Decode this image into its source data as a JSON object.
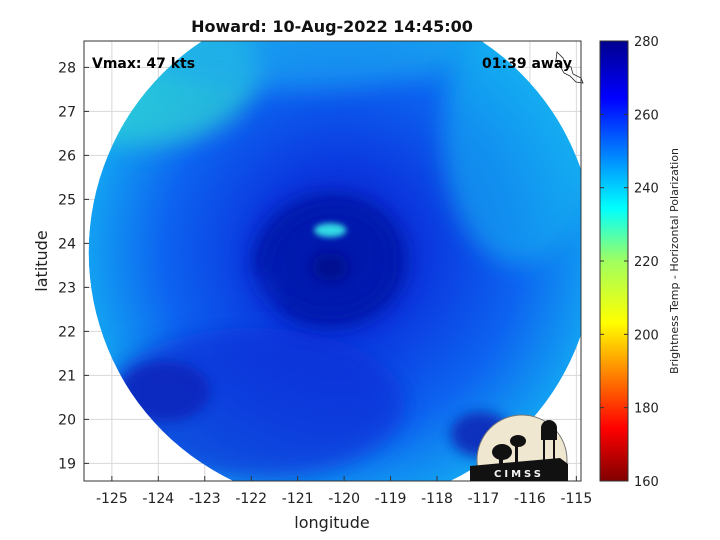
{
  "chart_data": {
    "type": "heatmap",
    "title": "Howard: 10-Aug-2022 14:45:00",
    "xlabel": "longitude",
    "ylabel": "latitude",
    "xlim": [
      -125.6,
      -114.9
    ],
    "ylim": [
      18.6,
      28.6
    ],
    "xticks": [
      -125,
      -124,
      -123,
      -122,
      -121,
      -120,
      -119,
      -118,
      -117,
      -116,
      -115
    ],
    "yticks": [
      19,
      20,
      21,
      22,
      23,
      24,
      25,
      26,
      27,
      28
    ],
    "grid": true,
    "annotations": {
      "vmax": "Vmax: 47 kts",
      "time_away": "01:39 away"
    },
    "swath": {
      "center_lon": -120.05,
      "center_lat": 23.8,
      "radius_deg": 5.45
    },
    "storm_center": {
      "lon": -120.3,
      "lat": 23.6
    },
    "warm_spot": {
      "lon": -120.3,
      "lat": 24.3
    },
    "colorbar": {
      "label": "Brightness Temp - Horizontal Polarization",
      "range": [
        160,
        280
      ],
      "ticks": [
        160,
        180,
        200,
        220,
        240,
        260,
        280
      ],
      "colormap": "jet"
    },
    "logo": "CIMSS"
  }
}
